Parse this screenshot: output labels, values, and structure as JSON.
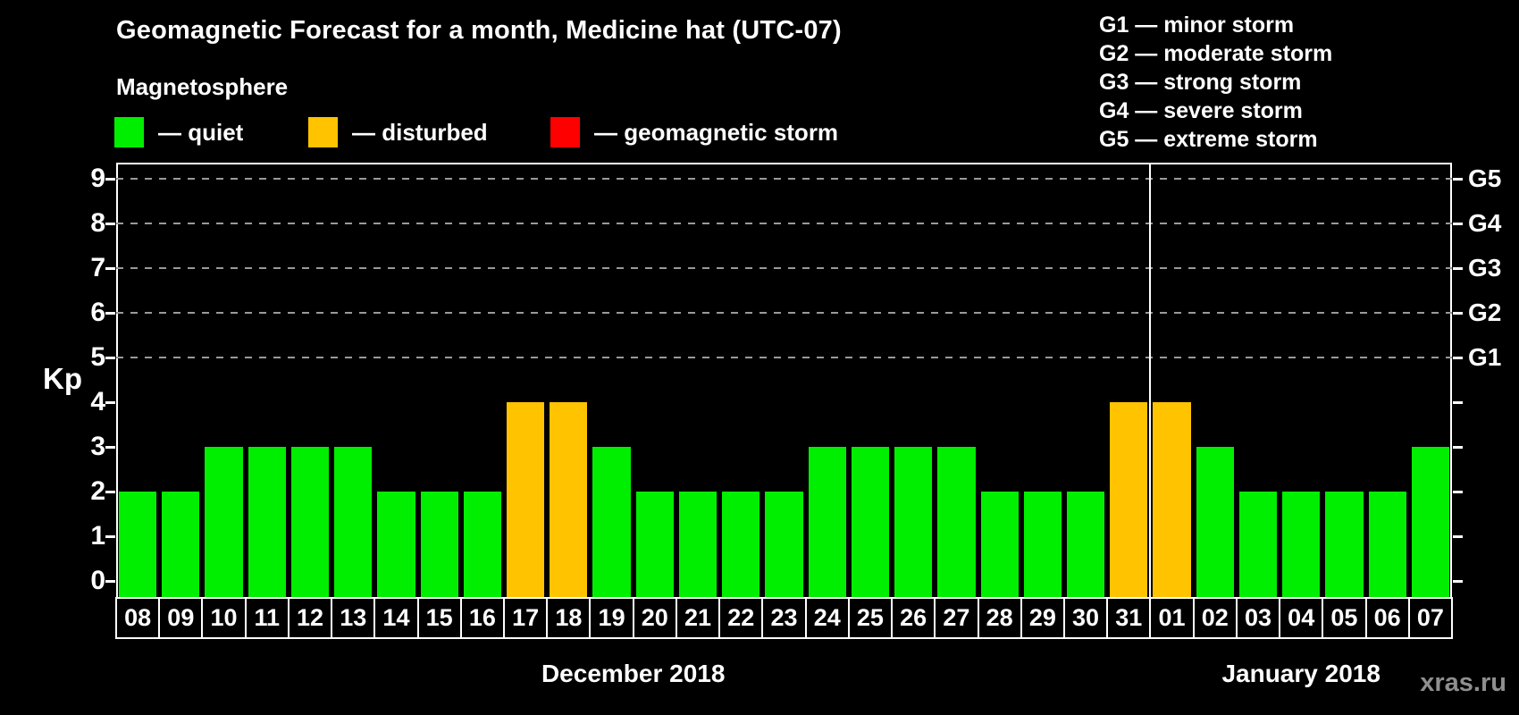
{
  "header": {
    "title": "Geomagnetic Forecast for a month, Medicine hat (UTC-07)"
  },
  "legend": {
    "heading": "Magnetosphere",
    "items": [
      {
        "key": "quiet",
        "label": "— quiet",
        "color": "#00ee00"
      },
      {
        "key": "disturbed",
        "label": "— disturbed",
        "color": "#ffc300"
      },
      {
        "key": "storm",
        "label": "— geomagnetic storm",
        "color": "#ff0000"
      }
    ]
  },
  "g_legend": {
    "items": [
      "G1 — minor storm",
      "G2 — moderate storm",
      "G3 — strong storm",
      "G4 — severe storm",
      "G5 — extreme storm"
    ]
  },
  "watermark": "xras.ru",
  "colors": {
    "quiet": "#00ee00",
    "disturbed": "#ffc300",
    "storm": "#ff0000",
    "axis": "#ffffff",
    "grid": "#9a9a9a",
    "background": "#000000"
  },
  "chart_data": {
    "type": "bar",
    "title": "Geomagnetic Forecast for a month, Medicine hat (UTC-07)",
    "ylabel": "Kp",
    "ylim": [
      0,
      9
    ],
    "y_ticks": [
      0,
      1,
      2,
      3,
      4,
      5,
      6,
      7,
      8,
      9
    ],
    "gridlines_at": [
      5,
      6,
      7,
      8,
      9
    ],
    "grid": "horizontal dashed at storm levels only",
    "legend_position": "top-left",
    "right_axis": [
      {
        "level": 5,
        "label": "G1"
      },
      {
        "level": 6,
        "label": "G2"
      },
      {
        "level": 7,
        "label": "G3"
      },
      {
        "level": 8,
        "label": "G4"
      },
      {
        "level": 9,
        "label": "G5"
      }
    ],
    "months": [
      {
        "label": "December 2018",
        "days": [
          {
            "day": "08",
            "kp": 2,
            "status": "quiet"
          },
          {
            "day": "09",
            "kp": 2,
            "status": "quiet"
          },
          {
            "day": "10",
            "kp": 3,
            "status": "quiet"
          },
          {
            "day": "11",
            "kp": 3,
            "status": "quiet"
          },
          {
            "day": "12",
            "kp": 3,
            "status": "quiet"
          },
          {
            "day": "13",
            "kp": 3,
            "status": "quiet"
          },
          {
            "day": "14",
            "kp": 2,
            "status": "quiet"
          },
          {
            "day": "15",
            "kp": 2,
            "status": "quiet"
          },
          {
            "day": "16",
            "kp": 2,
            "status": "quiet"
          },
          {
            "day": "17",
            "kp": 4,
            "status": "disturbed"
          },
          {
            "day": "18",
            "kp": 4,
            "status": "disturbed"
          },
          {
            "day": "19",
            "kp": 3,
            "status": "quiet"
          },
          {
            "day": "20",
            "kp": 2,
            "status": "quiet"
          },
          {
            "day": "21",
            "kp": 2,
            "status": "quiet"
          },
          {
            "day": "22",
            "kp": 2,
            "status": "quiet"
          },
          {
            "day": "23",
            "kp": 2,
            "status": "quiet"
          },
          {
            "day": "24",
            "kp": 3,
            "status": "quiet"
          },
          {
            "day": "25",
            "kp": 3,
            "status": "quiet"
          },
          {
            "day": "26",
            "kp": 3,
            "status": "quiet"
          },
          {
            "day": "27",
            "kp": 3,
            "status": "quiet"
          },
          {
            "day": "28",
            "kp": 2,
            "status": "quiet"
          },
          {
            "day": "29",
            "kp": 2,
            "status": "quiet"
          },
          {
            "day": "30",
            "kp": 2,
            "status": "quiet"
          },
          {
            "day": "31",
            "kp": 4,
            "status": "disturbed"
          }
        ]
      },
      {
        "label": "January 2018",
        "days": [
          {
            "day": "01",
            "kp": 4,
            "status": "disturbed"
          },
          {
            "day": "02",
            "kp": 3,
            "status": "quiet"
          },
          {
            "day": "03",
            "kp": 2,
            "status": "quiet"
          },
          {
            "day": "04",
            "kp": 2,
            "status": "quiet"
          },
          {
            "day": "05",
            "kp": 2,
            "status": "quiet"
          },
          {
            "day": "06",
            "kp": 2,
            "status": "quiet"
          },
          {
            "day": "07",
            "kp": 3,
            "status": "quiet"
          }
        ]
      }
    ]
  }
}
